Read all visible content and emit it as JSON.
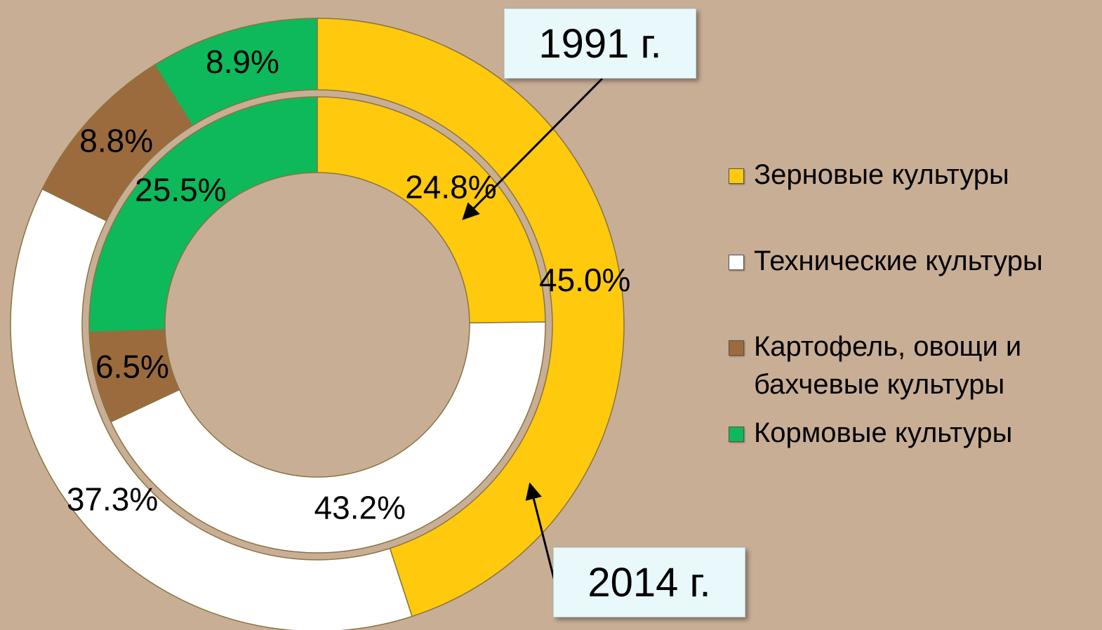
{
  "chart_data": {
    "type": "doughnut",
    "categories": [
      "Зерновые культуры",
      "Технические культуры",
      "Картофель, овощи и бахчевые культуры",
      "Кормовые культуры"
    ],
    "colors": [
      "#ffc90e",
      "#ffffff",
      "#9b6b3e",
      "#0db95a"
    ],
    "series": [
      {
        "name": "1991 г.",
        "values": [
          24.8,
          43.2,
          6.5,
          25.5
        ],
        "value_labels": [
          "24.8%",
          "43.2%",
          "6.5%",
          "25.5%"
        ]
      },
      {
        "name": "2014 г.",
        "values": [
          45.0,
          37.3,
          8.8,
          8.9
        ],
        "value_labels": [
          "45.0%",
          "37.3%",
          "8.8%",
          "8.9%"
        ]
      }
    ],
    "legend": "right"
  }
}
